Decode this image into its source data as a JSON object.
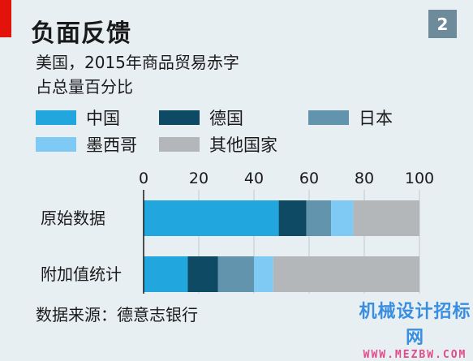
{
  "header": {
    "title": "负面反馈",
    "badge": "2",
    "subtitle_line1": "美国，2015年商品贸易赤字",
    "subtitle_line2": "占总量百分比"
  },
  "chart_data": {
    "type": "bar",
    "orientation": "horizontal",
    "stacked": true,
    "categories": [
      "原始数据",
      "附加值统计"
    ],
    "series": [
      {
        "name": "中国",
        "color": "#22a6de",
        "values": [
          49,
          16
        ]
      },
      {
        "name": "德国",
        "color": "#0e4a63",
        "values": [
          10,
          11
        ]
      },
      {
        "name": "日本",
        "color": "#6394ad",
        "values": [
          9,
          13
        ]
      },
      {
        "name": "墨西哥",
        "color": "#7fcaf4",
        "values": [
          8,
          7
        ]
      },
      {
        "name": "其他国家",
        "color": "#b3b7b9",
        "values": [
          24,
          53
        ]
      }
    ],
    "xlim": [
      0,
      100
    ],
    "xticks": [
      "0",
      "20",
      "40",
      "60",
      "80",
      "100"
    ],
    "grid": true,
    "legend_position": "top"
  },
  "footer": {
    "source": "数据来源：德意志银行"
  },
  "watermark": {
    "text": "机械设计招标网",
    "url": "WWW.MEZBW.COM"
  }
}
